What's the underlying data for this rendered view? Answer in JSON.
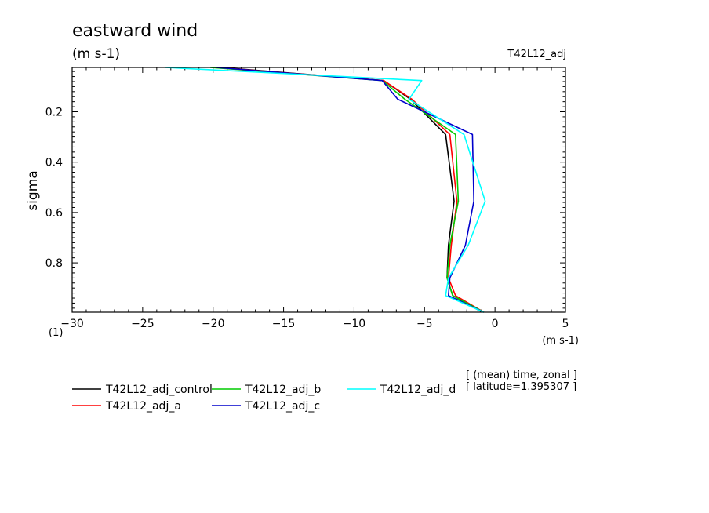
{
  "chart_data": {
    "type": "line",
    "title": "eastward wind",
    "subtitle": "(m s-1)",
    "run_label": "T42L12_adj",
    "xlabel": "(m s-1)",
    "ylabel": "sigma",
    "y_unit_label": "(1)",
    "xlim": [
      -30,
      5
    ],
    "ylim": [
      0.024,
      0.996
    ],
    "y_inverted": true,
    "x_ticks": [
      -30,
      -25,
      -20,
      -15,
      -10,
      -5,
      0,
      5
    ],
    "x_tick_labels": [
      "-30",
      "-25",
      "-20",
      "-15",
      "-10",
      "-5",
      "0",
      "5"
    ],
    "y_ticks": [
      0.2,
      0.4,
      0.6,
      0.8
    ],
    "y_tick_labels": [
      "0.2",
      "0.4",
      "0.6",
      "0.8"
    ],
    "annotations": [
      "[ (mean) time, zonal ]",
      "[ latitude=1.395307 ]"
    ],
    "legend_placement": "bottom",
    "y": [
      0.024,
      0.076,
      0.15,
      0.29,
      0.555,
      0.73,
      0.86,
      0.93,
      0.996
    ],
    "series": [
      {
        "name": "T42L12_adj_control",
        "color": "#000000",
        "values": [
          -19.4,
          -7.9,
          -6.0,
          -3.5,
          -2.9,
          -3.3,
          -3.4,
          -3.0,
          -0.9
        ]
      },
      {
        "name": "T42L12_adj_a",
        "color": "#ff0000",
        "values": [
          -19.7,
          -7.9,
          -5.9,
          -3.2,
          -2.7,
          -3.1,
          -3.3,
          -2.8,
          -0.8
        ]
      },
      {
        "name": "T42L12_adj_b",
        "color": "#00cc00",
        "values": [
          -20.2,
          -8.0,
          -6.4,
          -2.8,
          -2.6,
          -3.2,
          -3.4,
          -3.0,
          -0.8
        ]
      },
      {
        "name": "T42L12_adj_c",
        "color": "#0000cc",
        "values": [
          -19.8,
          -8.0,
          -6.9,
          -1.6,
          -1.5,
          -2.1,
          -3.2,
          -3.3,
          -0.8
        ]
      },
      {
        "name": "T42L12_adj_d",
        "color": "#00ffff",
        "values": [
          -23.4,
          -5.2,
          -6.1,
          -2.2,
          -0.7,
          -1.9,
          -3.3,
          -3.5,
          -0.8
        ]
      }
    ]
  }
}
